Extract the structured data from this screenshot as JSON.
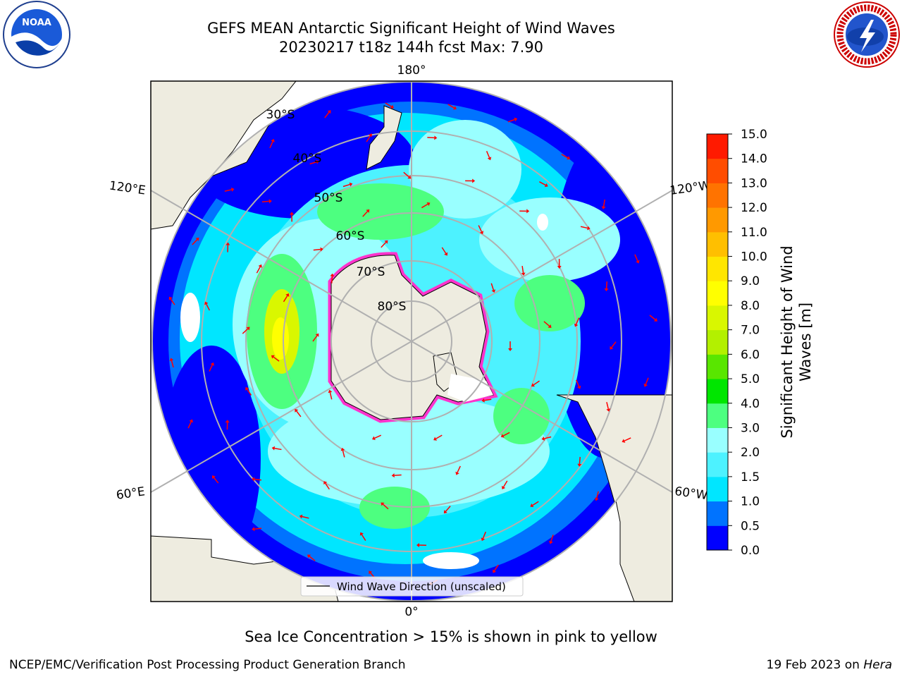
{
  "title": {
    "line1": "GEFS MEAN Antarctic Significant Height of Wind Waves",
    "line2": "20230217 t18z 144h fcst   Max: 7.90"
  },
  "map": {
    "longitude_labels": [
      "180°",
      "120°E",
      "120°W",
      "60°E",
      "60°W",
      "0°"
    ],
    "latitude_labels": [
      "30°S",
      "40°S",
      "50°S",
      "60°S",
      "70°S",
      "80°S"
    ],
    "legend_label": "Wind Wave Direction (unscaled)",
    "arrow_color": "#ff0000",
    "land_color": "#eeece0",
    "sea_ice_color": "#ff33cc"
  },
  "colorbar": {
    "label": "Significant Height of Wind Waves [m]",
    "tick_labels": [
      "0.0",
      "0.5",
      "1.0",
      "1.5",
      "2.0",
      "3.0",
      "4.0",
      "5.0",
      "6.0",
      "7.0",
      "8.0",
      "9.0",
      "10.0",
      "11.0",
      "12.0",
      "13.0",
      "14.0",
      "15.0"
    ],
    "colors": [
      "#0000ff",
      "#0073ff",
      "#00e6ff",
      "#4df2ff",
      "#99ffff",
      "#4dff80",
      "#00e600",
      "#59e600",
      "#b3f000",
      "#d9f700",
      "#ffff00",
      "#ffe600",
      "#ffbf00",
      "#ff9900",
      "#ff7300",
      "#ff4d00",
      "#ff1a00"
    ]
  },
  "footer": {
    "note": "Sea Ice Concentration > 15% is shown in pink to yellow",
    "left": "NCEP/EMC/Verification Post Processing Product Generation Branch",
    "date": "19 Feb 2023 on",
    "machine": "Hera"
  },
  "logos": {
    "noaa_text": "NOAA",
    "nws_text": "NATIONAL WEATHER SERVICE"
  }
}
